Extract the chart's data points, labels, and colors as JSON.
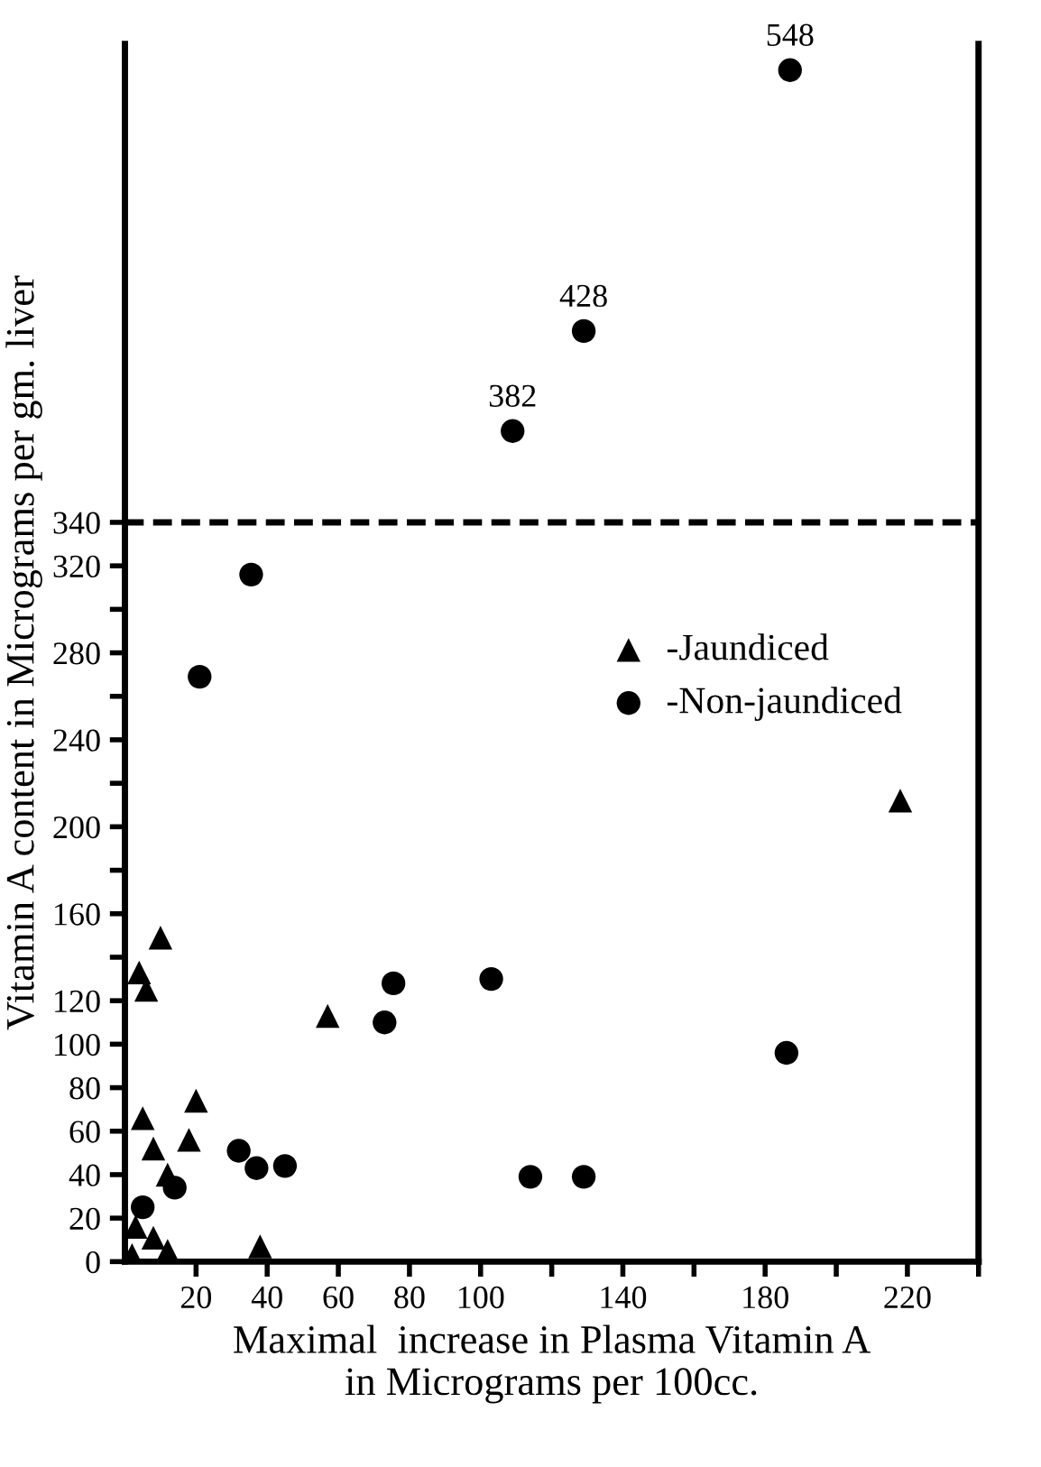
{
  "chart_data": {
    "type": "scatter",
    "xlabel": "Maximal  increase in Plasma Vitamin A\nin Micrograms per 100cc.",
    "ylabel": "Vitamin A content in Micrograms per gm. liver",
    "series": [
      {
        "name": "-Jaundiced",
        "color": "#000000",
        "marker": "triangle",
        "x": [
          4,
          10,
          6,
          5,
          8,
          12,
          18,
          20,
          38,
          57,
          218,
          3,
          8,
          12,
          2
        ],
        "values": [
          133,
          149,
          125,
          66,
          52,
          40,
          56,
          74,
          7,
          113,
          212,
          16,
          11,
          5,
          3
        ]
      },
      {
        "name": "-Non-jaundiced",
        "color": "#000000",
        "marker": "circle",
        "x": [
          21,
          35.5,
          109,
          129,
          187,
          75.5,
          73,
          103,
          186,
          114,
          129,
          45,
          37,
          32,
          14,
          5
        ],
        "values": [
          269,
          316,
          382,
          428,
          548,
          128,
          110,
          130,
          96,
          39,
          39,
          44,
          43,
          51,
          34,
          25
        ],
        "value_labels": [
          null,
          null,
          "382",
          "428",
          "548",
          null,
          null,
          null,
          null,
          null,
          null,
          null,
          null,
          null,
          null,
          null
        ]
      }
    ],
    "xlim": [
      0,
      240
    ],
    "xticks": [
      20,
      40,
      60,
      80,
      100,
      {
        "value": 120,
        "label": null
      },
      140,
      {
        "value": 160,
        "label": null
      },
      180,
      {
        "value": 200,
        "label": null
      },
      220,
      {
        "value": 240,
        "label": null
      }
    ],
    "ylim": [
      0,
      560
    ],
    "yticks": [
      0,
      20,
      40,
      60,
      80,
      100,
      120,
      {
        "value": 140,
        "label": null
      },
      160,
      {
        "value": 180,
        "label": null
      },
      200,
      {
        "value": 220,
        "label": null
      },
      240,
      {
        "value": 260,
        "label": null
      },
      280,
      {
        "value": 300,
        "label": null
      },
      320,
      340
    ],
    "ref_lines": [
      {
        "axis": "y",
        "value": 340,
        "line_style": "dashed",
        "color": "#000000"
      }
    ],
    "legend": "right",
    "grid": false
  }
}
